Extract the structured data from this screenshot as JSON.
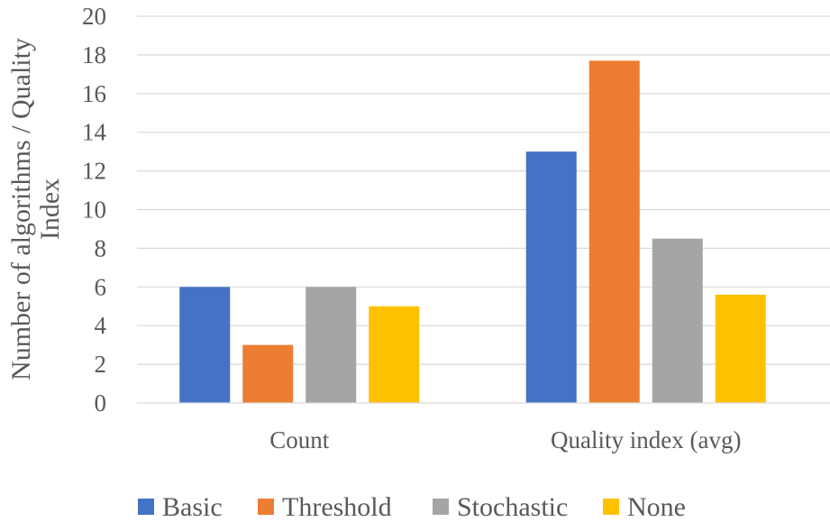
{
  "chart_data": {
    "type": "bar",
    "title": "",
    "xlabel": "",
    "ylabel": "Number of algorithms / Quality Index",
    "ylabel_lines": [
      "Number of algorithms / Quality",
      "Index"
    ],
    "categories": [
      "Count",
      "Quality index (avg)"
    ],
    "series": [
      {
        "name": "Basic",
        "values": [
          6,
          13
        ],
        "color": "#4472C4"
      },
      {
        "name": "Threshold",
        "values": [
          3,
          17.7
        ],
        "color": "#ED7D31"
      },
      {
        "name": "Stochastic",
        "values": [
          6,
          8.5
        ],
        "color": "#A5A5A5"
      },
      {
        "name": "None",
        "values": [
          5,
          5.6
        ],
        "color": "#FFC000"
      }
    ],
    "ylim": [
      0,
      20
    ],
    "yticks": [
      "0",
      "2",
      "4",
      "6",
      "8",
      "10",
      "12",
      "14",
      "16",
      "18",
      "20"
    ],
    "grid": true,
    "legend_position": "bottom"
  }
}
